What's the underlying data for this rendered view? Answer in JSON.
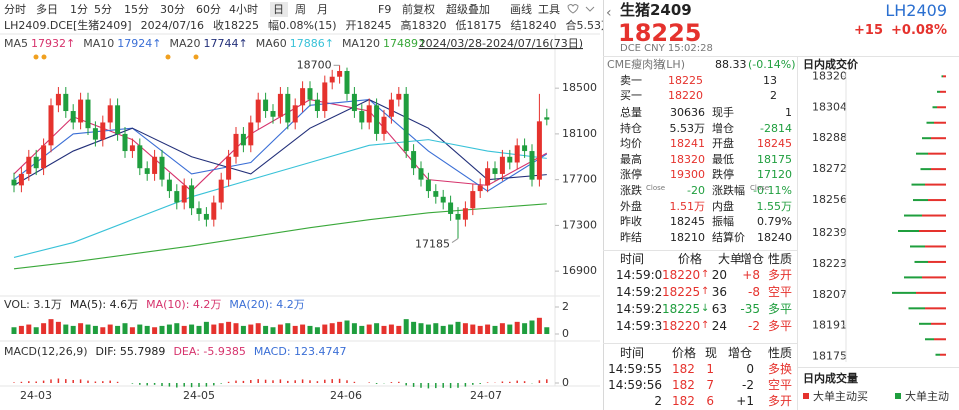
{
  "toolbar": {
    "periods": [
      "分时",
      "多日",
      "1分",
      "5分",
      "15分",
      "30分",
      "60分",
      "4小时",
      "日",
      "周",
      "月"
    ],
    "actions": [
      "F9",
      "前复权",
      "超级叠加",
      "画线",
      "工具"
    ]
  },
  "info_line": [
    "LH2409.DCE[生猪2409]",
    "2024/07/16",
    "收18225",
    "幅0.08%(15)",
    "开18245",
    "高18320",
    "低18175",
    "结18240",
    "合5.53万"
  ],
  "chart_data": [
    {
      "type": "candlestick",
      "range": "2024/03/28-2024/07/16(73日)",
      "up_color": "#e5322d",
      "down_color": "#1f9e3e",
      "ylim": [
        16735,
        18790
      ],
      "yticks": [
        18500,
        18100,
        17700,
        17300,
        16900
      ],
      "xlabels": [
        "24-03",
        "24-05",
        "24-06",
        "24-07"
      ],
      "annotations": {
        "high": 18700,
        "low": 17185
      },
      "open": [
        17700,
        17650,
        17750,
        17900,
        17800,
        18000,
        18350,
        18450,
        18300,
        18200,
        18400,
        18150,
        18050,
        18200,
        18350,
        18100,
        17950,
        18000,
        17800,
        17750,
        17900,
        17700,
        17600,
        17500,
        17650,
        17450,
        17400,
        17350,
        17500,
        17700,
        17900,
        18100,
        18000,
        18200,
        18400,
        18300,
        18250,
        18450,
        18200,
        18350,
        18500,
        18400,
        18300,
        18550,
        18600,
        18650,
        18450,
        18300,
        18200,
        18350,
        18100,
        18250,
        18400,
        18450,
        17950,
        17800,
        17700,
        17600,
        17550,
        17500,
        17400,
        17350,
        17450,
        17600,
        17650,
        17800,
        17750,
        17900,
        17850,
        18000,
        17950,
        17700,
        18245
      ],
      "high": [
        17760,
        17810,
        17960,
        17960,
        18060,
        18410,
        18510,
        18510,
        18360,
        18460,
        18460,
        18210,
        18260,
        18410,
        18410,
        18160,
        18060,
        18060,
        17860,
        17960,
        17960,
        17760,
        17660,
        17710,
        17710,
        17510,
        17460,
        17560,
        17760,
        17960,
        18160,
        18160,
        18260,
        18460,
        18460,
        18360,
        18510,
        18510,
        18410,
        18560,
        18560,
        18460,
        18610,
        18660,
        18700,
        18680,
        18510,
        18360,
        18410,
        18410,
        18310,
        18460,
        18510,
        18510,
        18010,
        17860,
        17760,
        17660,
        17610,
        17560,
        17460,
        17510,
        17660,
        17710,
        17860,
        17860,
        17960,
        17960,
        18060,
        18060,
        18010,
        18450,
        18320
      ],
      "low": [
        17590,
        17590,
        17690,
        17740,
        17740,
        17940,
        18290,
        18240,
        18140,
        18140,
        18090,
        17990,
        17990,
        18140,
        18040,
        17890,
        17890,
        17740,
        17690,
        17690,
        17640,
        17540,
        17440,
        17440,
        17390,
        17340,
        17290,
        17290,
        17440,
        17640,
        17840,
        17940,
        17940,
        18140,
        18240,
        18190,
        18190,
        18140,
        18140,
        18290,
        18340,
        18240,
        18240,
        18490,
        18540,
        18390,
        18240,
        18140,
        18140,
        18040,
        18040,
        18190,
        18340,
        17890,
        17740,
        17640,
        17540,
        17490,
        17440,
        17340,
        17185,
        17290,
        17390,
        17540,
        17590,
        17690,
        17690,
        17790,
        17790,
        17890,
        17640,
        17640,
        18175
      ],
      "close": [
        17650,
        17750,
        17900,
        17800,
        18000,
        18350,
        18450,
        18300,
        18200,
        18400,
        18150,
        18050,
        18200,
        18350,
        18100,
        17950,
        18000,
        17800,
        17750,
        17900,
        17700,
        17600,
        17500,
        17650,
        17450,
        17400,
        17350,
        17500,
        17700,
        17900,
        18100,
        18000,
        18200,
        18400,
        18300,
        18250,
        18450,
        18200,
        18350,
        18500,
        18400,
        18300,
        18550,
        18600,
        18650,
        18450,
        18300,
        18200,
        18350,
        18100,
        18250,
        18400,
        18450,
        17950,
        17800,
        17700,
        17600,
        17550,
        17500,
        17400,
        17350,
        17450,
        17600,
        17650,
        17800,
        17750,
        17900,
        17850,
        18000,
        17950,
        17700,
        18210,
        18225
      ],
      "ma": [
        {
          "name": "MA5",
          "label": "17932↑",
          "color": "#d6336c",
          "x": [
            0,
            8,
            16,
            24,
            32,
            40,
            48,
            56,
            64,
            72
          ],
          "values": [
            17750,
            18250,
            18050,
            17600,
            18100,
            18400,
            18300,
            17700,
            17650,
            17932
          ]
        },
        {
          "name": "MA10",
          "label": "17924↑",
          "color": "#3b6fd6",
          "x": [
            0,
            8,
            16,
            24,
            32,
            40,
            48,
            56,
            64,
            72
          ],
          "values": [
            17700,
            18100,
            18150,
            17750,
            17850,
            18350,
            18400,
            17950,
            17600,
            17924
          ]
        },
        {
          "name": "MA20",
          "label": "17744↑",
          "color": "#23307a",
          "x": [
            0,
            8,
            16,
            24,
            32,
            40,
            48,
            56,
            64,
            72
          ],
          "values": [
            17650,
            17950,
            18150,
            17900,
            17750,
            18150,
            18400,
            18150,
            17700,
            17744
          ]
        },
        {
          "name": "MA60",
          "label": "17886↑",
          "color": "#39c2d8",
          "x": [
            0,
            8,
            16,
            24,
            32,
            40,
            48,
            56,
            64,
            72
          ],
          "values": [
            17020,
            17150,
            17350,
            17550,
            17700,
            17850,
            18000,
            18050,
            17950,
            17886
          ]
        },
        {
          "name": "MA120",
          "label": "17489↑",
          "color": "#3aa83a",
          "x": [
            0,
            8,
            16,
            24,
            32,
            40,
            48,
            56,
            64,
            72
          ],
          "values": [
            16920,
            16980,
            17050,
            17120,
            17200,
            17280,
            17350,
            17410,
            17450,
            17489
          ]
        }
      ]
    },
    {
      "type": "bar",
      "title": "VOL: 3.1万",
      "ylim": [
        0,
        2
      ],
      "yticks": [
        0,
        2
      ],
      "legend": [
        {
          "name": "MA(5): 4.6万",
          "color": "#222222"
        },
        {
          "name": "MA(10): 4.2万",
          "color": "#d6336c"
        },
        {
          "name": "MA(20): 4.2万",
          "color": "#3b6fd6"
        }
      ],
      "values": [
        0.5,
        0.6,
        0.7,
        0.5,
        0.8,
        1.1,
        0.9,
        0.7,
        0.6,
        0.8,
        0.7,
        0.6,
        0.5,
        0.7,
        0.6,
        0.8,
        0.5,
        0.7,
        0.6,
        0.5,
        0.6,
        0.7,
        0.8,
        0.6,
        0.7,
        0.6,
        0.9,
        0.7,
        0.8,
        0.9,
        0.8,
        0.6,
        0.7,
        0.8,
        0.6,
        0.5,
        0.7,
        0.8,
        0.6,
        0.7,
        0.6,
        0.5,
        0.7,
        0.8,
        0.9,
        1.0,
        0.8,
        0.6,
        0.7,
        0.8,
        0.6,
        0.7,
        0.6,
        1.1,
        0.9,
        0.8,
        0.7,
        0.8,
        0.6,
        0.7,
        0.9,
        0.8,
        0.7,
        0.6,
        0.7,
        0.6,
        0.8,
        0.7,
        0.9,
        0.8,
        1.0,
        1.2,
        0.5
      ]
    },
    {
      "type": "bar",
      "title": "MACD(12,26,9)",
      "ylim": [
        -500,
        500
      ],
      "yticks": [
        0
      ],
      "pos_color": "#e5322d",
      "neg_color": "#1f9e3e",
      "legend": [
        {
          "name": "DIF: 55.7989",
          "color": "#222222"
        },
        {
          "name": "DEA: -5.9385",
          "color": "#d6336c"
        },
        {
          "name": "MACD: 123.4747",
          "color": "#3b6fd6"
        }
      ],
      "values": [
        20,
        40,
        60,
        50,
        80,
        120,
        150,
        130,
        100,
        120,
        80,
        50,
        60,
        80,
        40,
        0,
        -20,
        -60,
        -80,
        -60,
        -100,
        -120,
        -150,
        -120,
        -140,
        -130,
        -120,
        -80,
        -20,
        40,
        80,
        70,
        100,
        130,
        110,
        90,
        120,
        70,
        90,
        120,
        90,
        60,
        110,
        130,
        140,
        90,
        40,
        0,
        20,
        -30,
        -10,
        30,
        40,
        -80,
        -130,
        -160,
        -180,
        -170,
        -160,
        -170,
        -160,
        -120,
        -60,
        -30,
        20,
        10,
        50,
        40,
        80,
        60,
        -10,
        90,
        123.4747
      ]
    },
    {
      "type": "hbar",
      "title": "日内成交价",
      "subtitle": "日内成交量",
      "ylim": [
        18165,
        18330
      ],
      "yticks": [
        18320,
        18304,
        18288,
        18272,
        18256,
        18239,
        18223,
        18207,
        18191,
        18175
      ],
      "xlim": [
        0,
        60
      ],
      "prices": [
        18320,
        18312,
        18304,
        18296,
        18288,
        18280,
        18272,
        18264,
        18256,
        18248,
        18240,
        18232,
        18224,
        18216,
        18208,
        18200,
        18192,
        18184,
        18176
      ],
      "series": [
        {
          "name": "大单主动买",
          "color": "#e5322d",
          "values": [
            2,
            4,
            6,
            8,
            10,
            12,
            10,
            14,
            12,
            16,
            18,
            14,
            12,
            16,
            20,
            14,
            10,
            8,
            4
          ]
        },
        {
          "name": "大单主动",
          "color": "#1f9e3e",
          "values": [
            1,
            2,
            3,
            5,
            6,
            8,
            7,
            9,
            10,
            12,
            14,
            10,
            9,
            12,
            16,
            11,
            8,
            6,
            3
          ]
        }
      ]
    }
  ],
  "quote": {
    "name": "生猪2409",
    "code": "LH2409",
    "price": "18225",
    "change": "+15",
    "change_pct": "+0.08%",
    "meta": "DCE CNY 15:02:28",
    "ref": [
      "CME瘦肉猪",
      "(LH)",
      "88.33",
      "(-0.14%)"
    ],
    "book": [
      [
        "卖一",
        "18225",
        "13"
      ],
      [
        "买一",
        "18220",
        "2"
      ]
    ],
    "close_note": "Close",
    "stats": [
      [
        "总量",
        "30636",
        "现手",
        "1"
      ],
      [
        "持仓",
        "5.53万",
        "增仓",
        "-2814"
      ],
      [
        "均价",
        "18241",
        "开盘",
        "18245"
      ],
      [
        "最高",
        "18320",
        "最低",
        "18175"
      ],
      [
        "涨停",
        "19300",
        "跌停",
        "17120"
      ],
      [
        "涨跌",
        "-20",
        "涨跌幅",
        "-0.11%"
      ],
      [
        "外盘",
        "1.51万",
        "内盘",
        "1.55万"
      ],
      [
        "昨收",
        "18245",
        "振幅",
        "0.79%"
      ],
      [
        "昨结",
        "18210",
        "结算价",
        "18240"
      ]
    ]
  },
  "trades": {
    "headers": [
      "时间",
      "价格",
      "大单",
      "增仓",
      "性质"
    ],
    "rows": [
      [
        "14:59:0",
        "18220",
        "↑",
        "20",
        "+8",
        "多开"
      ],
      [
        "14:59:2",
        "18225",
        "↑",
        "36",
        "-8",
        "空平"
      ],
      [
        "14:59:2",
        "18225",
        "↓",
        "63",
        "-35",
        "多平"
      ],
      [
        "14:59:3",
        "18220",
        "↑",
        "24",
        "-2",
        "多平"
      ]
    ]
  },
  "ticks": {
    "headers": [
      "时间",
      "价格",
      "现",
      "增仓",
      "性质"
    ],
    "rows": [
      [
        "14:59:55",
        "182",
        "1",
        "0",
        "多换"
      ],
      [
        "14:59:56",
        "182",
        "7",
        "-2",
        "空平"
      ],
      [
        "2",
        "182",
        "6",
        "+1",
        "多开"
      ]
    ]
  }
}
